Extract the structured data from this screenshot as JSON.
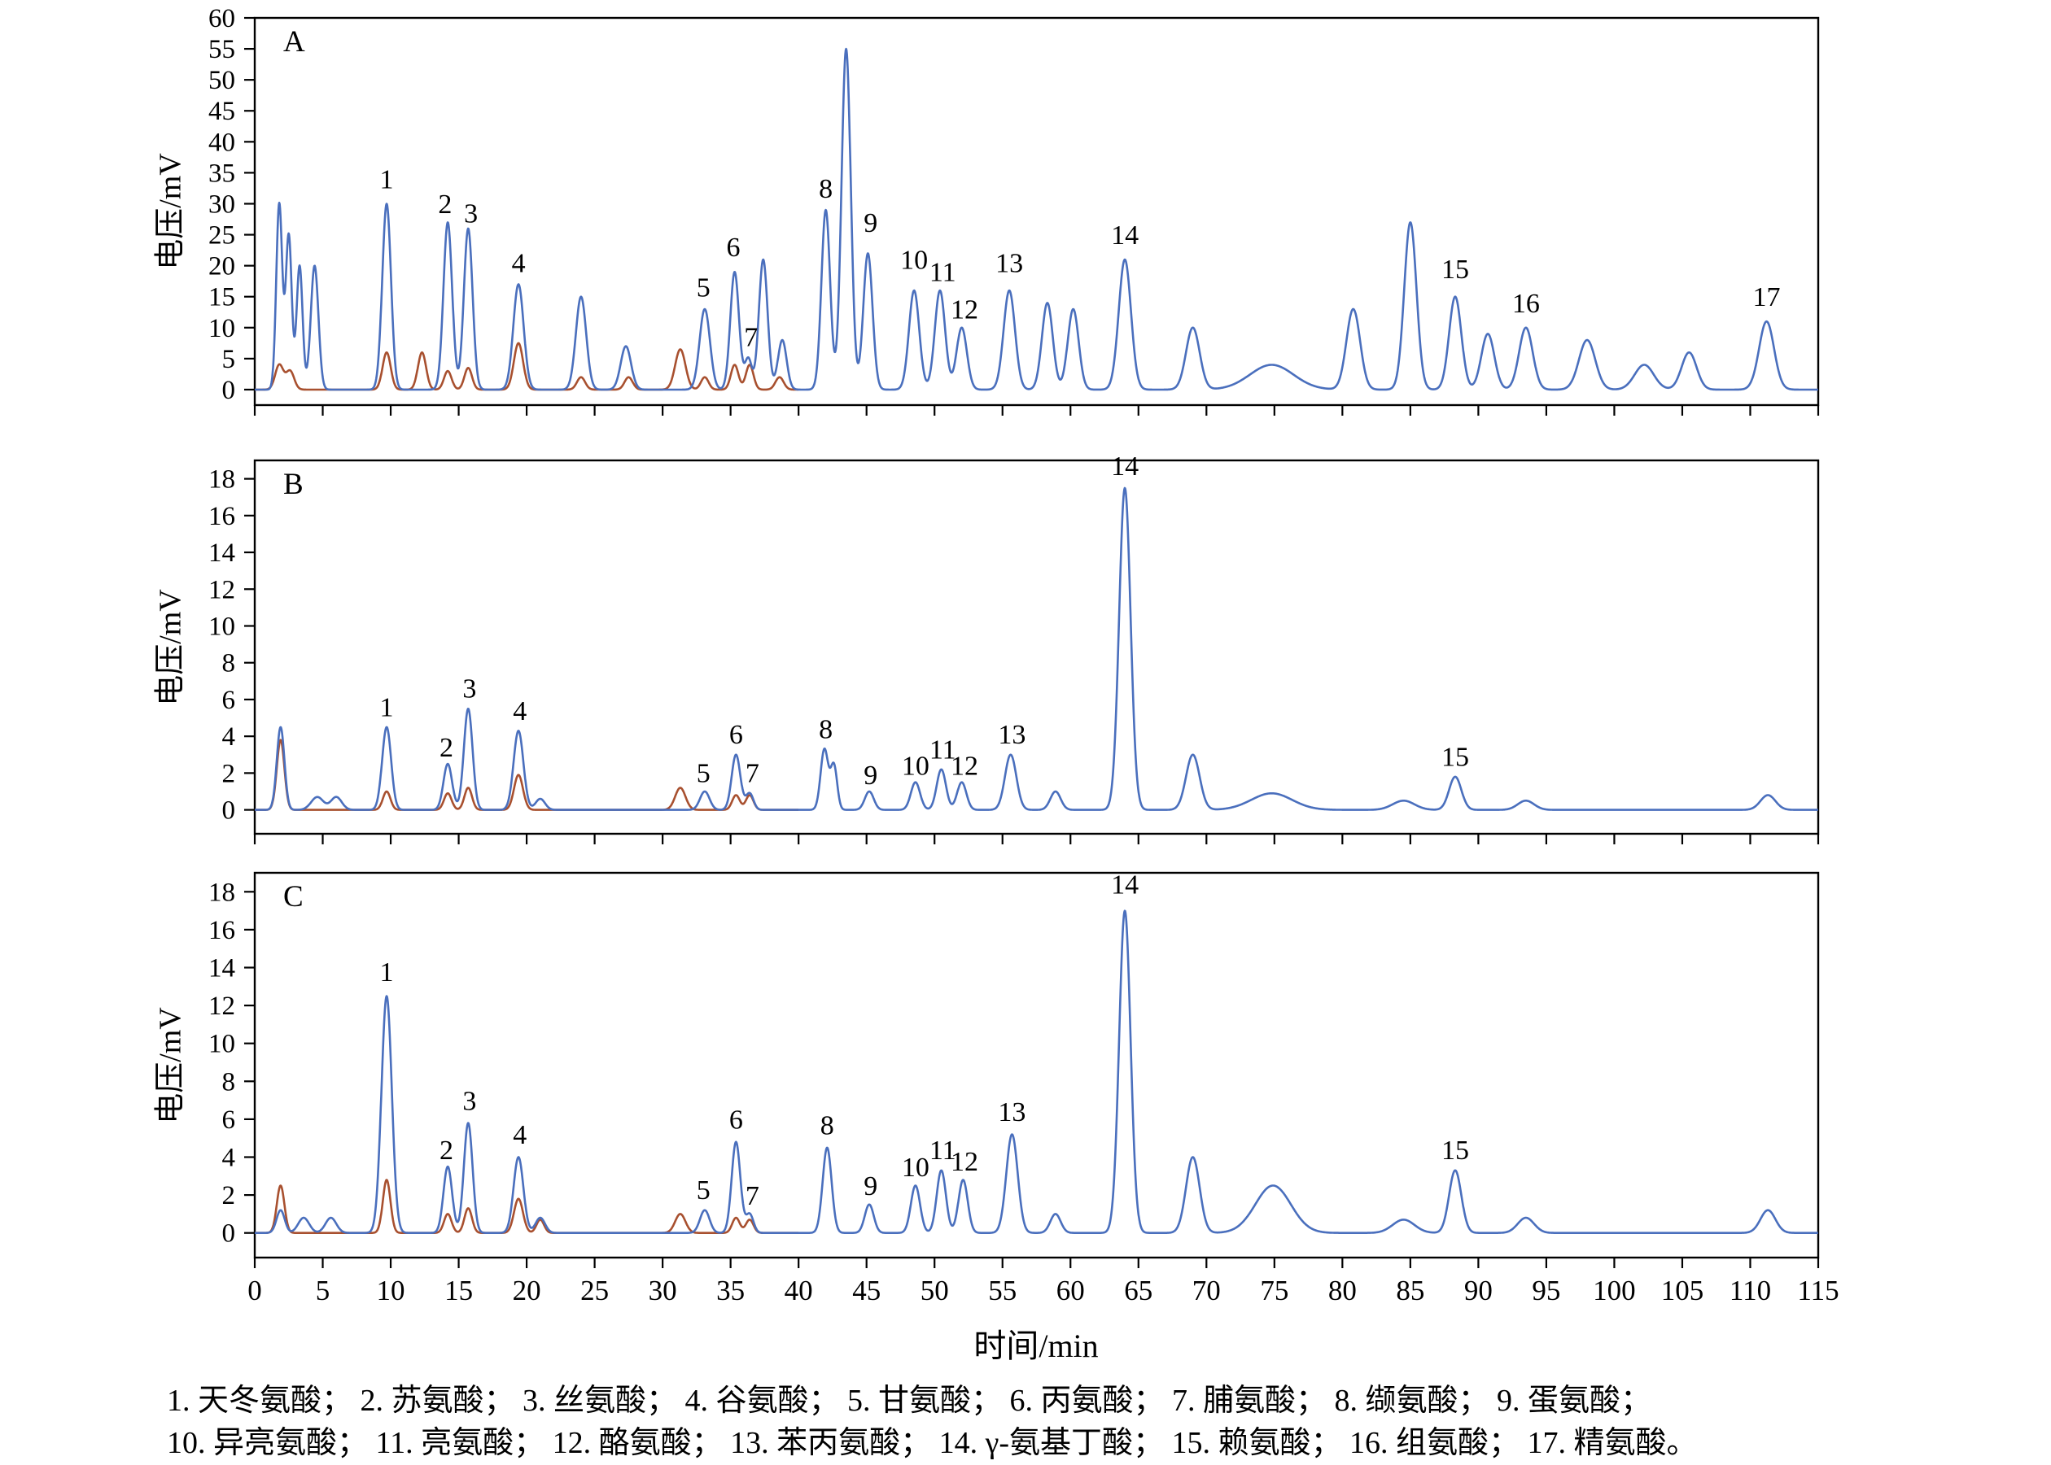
{
  "figure": {
    "xlabel": "时间/min",
    "ylabel": "电压/mV",
    "colors": {
      "axis": "#000000",
      "trace_primary": "#4a6fbd",
      "trace_secondary": "#a8502f"
    },
    "legend_lines": [
      "1. 天冬氨酸； 2. 苏氨酸； 3. 丝氨酸； 4. 谷氨酸； 5. 甘氨酸； 6. 丙氨酸； 7. 脯氨酸； 8. 缬氨酸； 9. 蛋氨酸；",
      "10. 异亮氨酸； 11. 亮氨酸； 12. 酪氨酸； 13. 苯丙氨酸； 14. γ-氨基丁酸； 15. 赖氨酸； 16. 组氨酸； 17. 精氨酸。"
    ]
  },
  "peak_key": [
    {
      "n": "1",
      "name": "天冬氨酸"
    },
    {
      "n": "2",
      "name": "苏氨酸"
    },
    {
      "n": "3",
      "name": "丝氨酸"
    },
    {
      "n": "4",
      "name": "谷氨酸"
    },
    {
      "n": "5",
      "name": "甘氨酸"
    },
    {
      "n": "6",
      "name": "丙氨酸"
    },
    {
      "n": "7",
      "name": "脯氨酸"
    },
    {
      "n": "8",
      "name": "缬氨酸"
    },
    {
      "n": "9",
      "name": "蛋氨酸"
    },
    {
      "n": "10",
      "name": "异亮氨酸"
    },
    {
      "n": "11",
      "name": "亮氨酸"
    },
    {
      "n": "12",
      "name": "酪氨酸"
    },
    {
      "n": "13",
      "name": "苯丙氨酸"
    },
    {
      "n": "14",
      "name": "γ-氨基丁酸"
    },
    {
      "n": "15",
      "name": "赖氨酸"
    },
    {
      "n": "16",
      "name": "组氨酸"
    },
    {
      "n": "17",
      "name": "精氨酸"
    }
  ],
  "chart_data": [
    {
      "type": "line",
      "panel": "A",
      "xlabel": "时间/min",
      "ylabel": "电压/mV",
      "xlim": [
        0,
        115
      ],
      "ylim": [
        -2.5,
        60
      ],
      "yticks": [
        0,
        5,
        10,
        15,
        20,
        25,
        30,
        35,
        40,
        45,
        50,
        55,
        60
      ],
      "xticks": [
        0,
        5,
        10,
        15,
        20,
        25,
        30,
        35,
        40,
        45,
        50,
        55,
        60,
        65,
        70,
        75,
        80,
        85,
        90,
        95,
        100,
        105,
        110,
        115
      ],
      "x_tick_labels_visible": false,
      "series": [
        {
          "name": "red-trace",
          "color": "#a8502f",
          "range": [
            0,
            40
          ],
          "peaks": [
            [
              1.8,
              4,
              0.3
            ],
            [
              2.6,
              3,
              0.3
            ],
            [
              9.7,
              6,
              0.3
            ],
            [
              12.3,
              6,
              0.3
            ],
            [
              14.2,
              3,
              0.28
            ],
            [
              15.7,
              3.5,
              0.28
            ],
            [
              19.4,
              7.5,
              0.34
            ],
            [
              24.0,
              2,
              0.3
            ],
            [
              27.5,
              2,
              0.3
            ],
            [
              31.3,
              6.5,
              0.38
            ],
            [
              33.1,
              2,
              0.28
            ],
            [
              35.3,
              4,
              0.28
            ],
            [
              36.4,
              4,
              0.28
            ],
            [
              38.6,
              2,
              0.3
            ]
          ]
        },
        {
          "name": "blue-trace",
          "color": "#4a6fbd",
          "range": [
            0,
            115
          ],
          "peaks": [
            [
              1.8,
              30,
              0.22
            ],
            [
              2.5,
              25,
              0.22
            ],
            [
              3.3,
              20,
              0.22
            ],
            [
              4.4,
              20,
              0.28
            ],
            [
              9.7,
              30,
              0.32
            ],
            [
              14.2,
              27,
              0.32
            ],
            [
              15.7,
              26,
              0.32
            ],
            [
              19.4,
              17,
              0.38
            ],
            [
              24.0,
              15,
              0.38
            ],
            [
              27.3,
              7,
              0.38
            ],
            [
              33.1,
              13,
              0.38
            ],
            [
              35.3,
              19,
              0.32
            ],
            [
              36.3,
              5,
              0.26
            ],
            [
              37.4,
              21,
              0.32
            ],
            [
              38.8,
              8,
              0.32
            ],
            [
              42.0,
              29,
              0.32
            ],
            [
              43.5,
              55,
              0.34
            ],
            [
              45.1,
              22,
              0.34
            ],
            [
              48.5,
              16,
              0.38
            ],
            [
              50.4,
              16,
              0.38
            ],
            [
              52.0,
              10,
              0.38
            ],
            [
              55.5,
              16,
              0.42
            ],
            [
              58.3,
              14,
              0.4
            ],
            [
              60.2,
              13,
              0.4
            ],
            [
              64.0,
              21,
              0.45
            ],
            [
              69.0,
              10,
              0.5
            ],
            [
              74.8,
              4,
              1.6
            ],
            [
              80.8,
              13,
              0.5
            ],
            [
              85.0,
              27,
              0.45
            ],
            [
              88.3,
              15,
              0.45
            ],
            [
              90.7,
              9,
              0.48
            ],
            [
              93.5,
              10,
              0.5
            ],
            [
              98.0,
              8,
              0.6
            ],
            [
              102.2,
              4,
              0.7
            ],
            [
              105.5,
              6,
              0.55
            ],
            [
              111.2,
              11,
              0.55
            ]
          ]
        }
      ],
      "peak_labels": [
        {
          "n": "1",
          "t": 9.7,
          "v": 32.5
        },
        {
          "n": "2",
          "t": 14.0,
          "v": 28.5
        },
        {
          "n": "3",
          "t": 15.9,
          "v": 27.0
        },
        {
          "n": "4",
          "t": 19.4,
          "v": 19.0
        },
        {
          "n": "5",
          "t": 33.0,
          "v": 15.0
        },
        {
          "n": "6",
          "t": 35.2,
          "v": 21.5
        },
        {
          "n": "7",
          "t": 36.5,
          "v": 7.0
        },
        {
          "n": "8",
          "t": 42.0,
          "v": 31.0
        },
        {
          "n": "9",
          "t": 45.3,
          "v": 25.5
        },
        {
          "n": "10",
          "t": 48.5,
          "v": 19.5
        },
        {
          "n": "11",
          "t": 50.6,
          "v": 17.5
        },
        {
          "n": "12",
          "t": 52.2,
          "v": 11.5
        },
        {
          "n": "13",
          "t": 55.5,
          "v": 19.0
        },
        {
          "n": "14",
          "t": 64.0,
          "v": 23.5
        },
        {
          "n": "15",
          "t": 88.3,
          "v": 18.0
        },
        {
          "n": "16",
          "t": 93.5,
          "v": 12.5
        },
        {
          "n": "17",
          "t": 111.2,
          "v": 13.5
        }
      ]
    },
    {
      "type": "line",
      "panel": "B",
      "xlabel": "时间/min",
      "ylabel": "电压/mV",
      "xlim": [
        0,
        115
      ],
      "ylim": [
        -1.3,
        19.0
      ],
      "yticks": [
        0,
        2,
        4,
        6,
        8,
        10,
        12,
        14,
        16,
        18
      ],
      "xticks": [
        0,
        5,
        10,
        15,
        20,
        25,
        30,
        35,
        40,
        45,
        50,
        55,
        60,
        65,
        70,
        75,
        80,
        85,
        90,
        95,
        100,
        105,
        110,
        115
      ],
      "x_tick_labels_visible": false,
      "series": [
        {
          "name": "red-trace",
          "color": "#a8502f",
          "range": [
            0,
            40
          ],
          "peaks": [
            [
              1.9,
              3.8,
              0.28
            ],
            [
              9.7,
              1.0,
              0.28
            ],
            [
              14.2,
              0.9,
              0.28
            ],
            [
              15.7,
              1.2,
              0.28
            ],
            [
              19.4,
              1.9,
              0.33
            ],
            [
              31.3,
              1.2,
              0.38
            ],
            [
              35.4,
              0.8,
              0.28
            ],
            [
              36.4,
              0.8,
              0.28
            ]
          ]
        },
        {
          "name": "blue-trace",
          "color": "#4a6fbd",
          "range": [
            0,
            115
          ],
          "peaks": [
            [
              1.9,
              4.5,
              0.28
            ],
            [
              4.6,
              0.7,
              0.45
            ],
            [
              6.0,
              0.7,
              0.4
            ],
            [
              9.7,
              4.5,
              0.33
            ],
            [
              14.2,
              2.5,
              0.32
            ],
            [
              15.7,
              5.5,
              0.32
            ],
            [
              19.4,
              4.3,
              0.36
            ],
            [
              21.0,
              0.6,
              0.35
            ],
            [
              33.1,
              1.0,
              0.35
            ],
            [
              35.4,
              3.0,
              0.32
            ],
            [
              36.4,
              0.9,
              0.28
            ],
            [
              41.9,
              3.3,
              0.28
            ],
            [
              42.6,
              2.4,
              0.24
            ],
            [
              45.2,
              1.0,
              0.33
            ],
            [
              48.6,
              1.5,
              0.34
            ],
            [
              50.5,
              2.2,
              0.34
            ],
            [
              52.0,
              1.5,
              0.34
            ],
            [
              55.6,
              3.0,
              0.42
            ],
            [
              58.9,
              1.0,
              0.38
            ],
            [
              64.0,
              17.5,
              0.42
            ],
            [
              69.0,
              3.0,
              0.5
            ],
            [
              74.8,
              0.9,
              1.5
            ],
            [
              84.5,
              0.5,
              0.8
            ],
            [
              88.3,
              1.8,
              0.45
            ],
            [
              93.5,
              0.5,
              0.6
            ],
            [
              111.3,
              0.8,
              0.55
            ]
          ]
        }
      ],
      "peak_labels": [
        {
          "n": "1",
          "t": 9.7,
          "v": 5.1
        },
        {
          "n": "2",
          "t": 14.1,
          "v": 2.9
        },
        {
          "n": "3",
          "t": 15.8,
          "v": 6.1
        },
        {
          "n": "4",
          "t": 19.5,
          "v": 4.9
        },
        {
          "n": "5",
          "t": 33.0,
          "v": 1.5
        },
        {
          "n": "6",
          "t": 35.4,
          "v": 3.6
        },
        {
          "n": "7",
          "t": 36.6,
          "v": 1.5
        },
        {
          "n": "8",
          "t": 42.0,
          "v": 3.9
        },
        {
          "n": "9",
          "t": 45.3,
          "v": 1.4
        },
        {
          "n": "10",
          "t": 48.6,
          "v": 1.9
        },
        {
          "n": "11",
          "t": 50.6,
          "v": 2.8
        },
        {
          "n": "12",
          "t": 52.2,
          "v": 1.9
        },
        {
          "n": "13",
          "t": 55.7,
          "v": 3.6
        },
        {
          "n": "14",
          "t": 64.0,
          "v": 18.2
        },
        {
          "n": "15",
          "t": 88.3,
          "v": 2.4
        }
      ]
    },
    {
      "type": "line",
      "panel": "C",
      "xlabel": "时间/min",
      "ylabel": "电压/mV",
      "xlim": [
        0,
        115
      ],
      "ylim": [
        -1.3,
        19.0
      ],
      "yticks": [
        0,
        2,
        4,
        6,
        8,
        10,
        12,
        14,
        16,
        18
      ],
      "xticks": [
        0,
        5,
        10,
        15,
        20,
        25,
        30,
        35,
        40,
        45,
        50,
        55,
        60,
        65,
        70,
        75,
        80,
        85,
        90,
        95,
        100,
        105,
        110,
        115
      ],
      "x_tick_labels_visible": true,
      "series": [
        {
          "name": "red-trace",
          "color": "#a8502f",
          "range": [
            0,
            40
          ],
          "peaks": [
            [
              1.9,
              2.5,
              0.28
            ],
            [
              9.7,
              2.8,
              0.28
            ],
            [
              14.2,
              1.0,
              0.28
            ],
            [
              15.7,
              1.3,
              0.28
            ],
            [
              19.4,
              1.8,
              0.33
            ],
            [
              21.0,
              0.7,
              0.28
            ],
            [
              31.3,
              1.0,
              0.38
            ],
            [
              35.4,
              0.8,
              0.28
            ],
            [
              36.4,
              0.7,
              0.28
            ]
          ]
        },
        {
          "name": "blue-trace",
          "color": "#4a6fbd",
          "range": [
            0,
            115
          ],
          "peaks": [
            [
              1.9,
              1.2,
              0.3
            ],
            [
              3.6,
              0.8,
              0.4
            ],
            [
              5.6,
              0.8,
              0.4
            ],
            [
              9.7,
              12.5,
              0.38
            ],
            [
              14.2,
              3.5,
              0.32
            ],
            [
              15.7,
              5.8,
              0.32
            ],
            [
              19.4,
              4.0,
              0.36
            ],
            [
              21.0,
              0.8,
              0.35
            ],
            [
              33.1,
              1.2,
              0.35
            ],
            [
              35.4,
              4.8,
              0.32
            ],
            [
              36.4,
              1.0,
              0.28
            ],
            [
              42.1,
              4.5,
              0.33
            ],
            [
              45.2,
              1.5,
              0.33
            ],
            [
              48.6,
              2.5,
              0.34
            ],
            [
              50.5,
              3.3,
              0.34
            ],
            [
              52.1,
              2.8,
              0.34
            ],
            [
              55.7,
              5.2,
              0.42
            ],
            [
              58.9,
              1.0,
              0.38
            ],
            [
              64.0,
              17.0,
              0.42
            ],
            [
              69.0,
              4.0,
              0.5
            ],
            [
              74.9,
              2.5,
              1.3
            ],
            [
              84.5,
              0.7,
              0.8
            ],
            [
              88.3,
              3.3,
              0.45
            ],
            [
              93.5,
              0.8,
              0.6
            ],
            [
              111.3,
              1.2,
              0.55
            ]
          ]
        }
      ],
      "peak_labels": [
        {
          "n": "1",
          "t": 9.7,
          "v": 13.3
        },
        {
          "n": "2",
          "t": 14.1,
          "v": 3.9
        },
        {
          "n": "3",
          "t": 15.8,
          "v": 6.5
        },
        {
          "n": "4",
          "t": 19.5,
          "v": 4.7
        },
        {
          "n": "5",
          "t": 33.0,
          "v": 1.8
        },
        {
          "n": "6",
          "t": 35.4,
          "v": 5.5
        },
        {
          "n": "7",
          "t": 36.6,
          "v": 1.5
        },
        {
          "n": "8",
          "t": 42.1,
          "v": 5.2
        },
        {
          "n": "9",
          "t": 45.3,
          "v": 2.0
        },
        {
          "n": "10",
          "t": 48.6,
          "v": 3.0
        },
        {
          "n": "11",
          "t": 50.6,
          "v": 3.9
        },
        {
          "n": "12",
          "t": 52.2,
          "v": 3.3
        },
        {
          "n": "13",
          "t": 55.7,
          "v": 5.9
        },
        {
          "n": "14",
          "t": 64.0,
          "v": 17.9
        },
        {
          "n": "15",
          "t": 88.3,
          "v": 3.9
        }
      ]
    }
  ]
}
